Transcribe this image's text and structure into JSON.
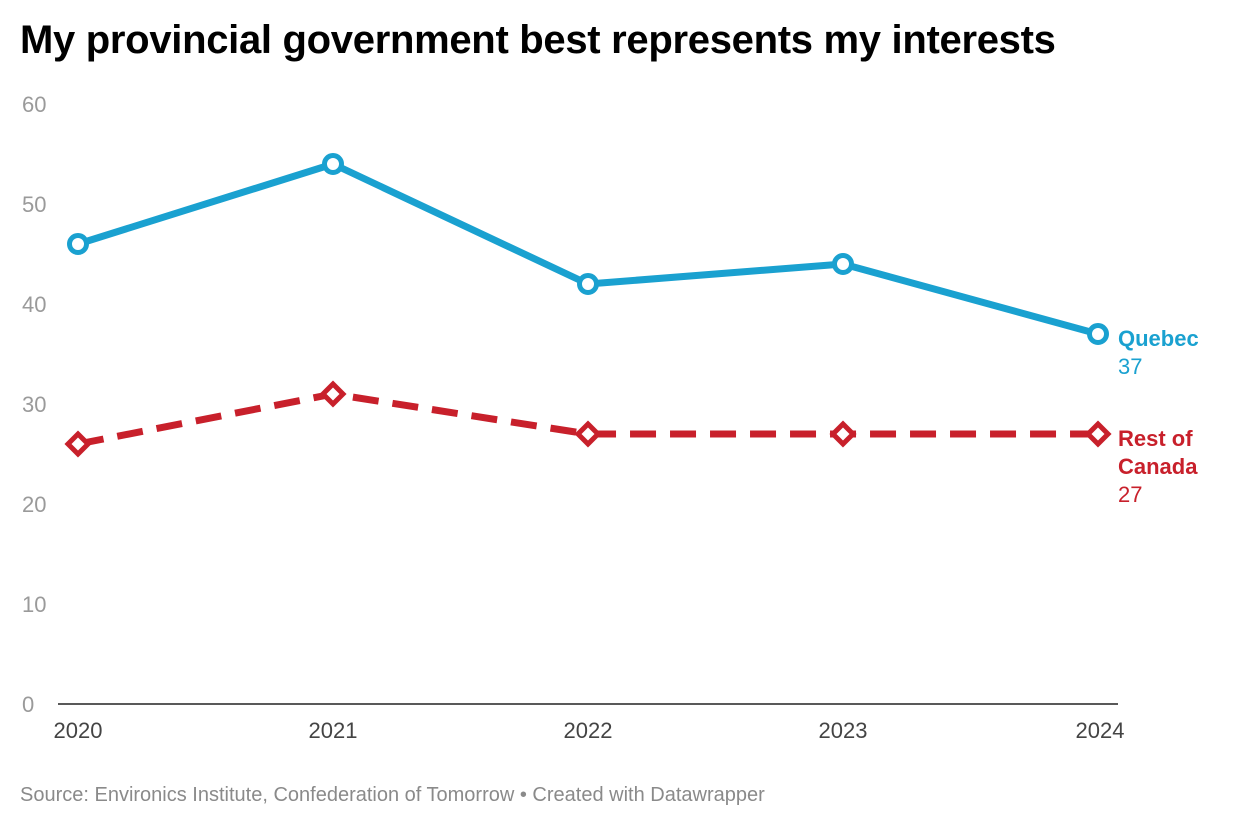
{
  "title": "My provincial government best represents my interests",
  "source": "Source: Environics Institute, Confederation of Tomorrow • Created with Datawrapper",
  "chart_data": {
    "type": "line",
    "title": "My provincial government best represents my interests",
    "xlabel": "",
    "ylabel": "",
    "x": [
      "2020",
      "2021",
      "2022",
      "2023",
      "2024"
    ],
    "ylim": [
      0,
      60
    ],
    "yticks": [
      0,
      10,
      20,
      30,
      40,
      50,
      60
    ],
    "grid": false,
    "series": [
      {
        "name": "Quebec",
        "values": [
          46,
          54,
          42,
          44,
          37
        ],
        "end_label": "37",
        "color": "#1aa1d0",
        "style": "solid",
        "marker": "circle"
      },
      {
        "name": "Rest of Canada",
        "name_lines": [
          "Rest of",
          "Canada"
        ],
        "values": [
          26,
          31,
          27,
          27,
          27
        ],
        "end_label": "27",
        "color": "#c8202b",
        "style": "dashed",
        "marker": "diamond"
      }
    ]
  }
}
